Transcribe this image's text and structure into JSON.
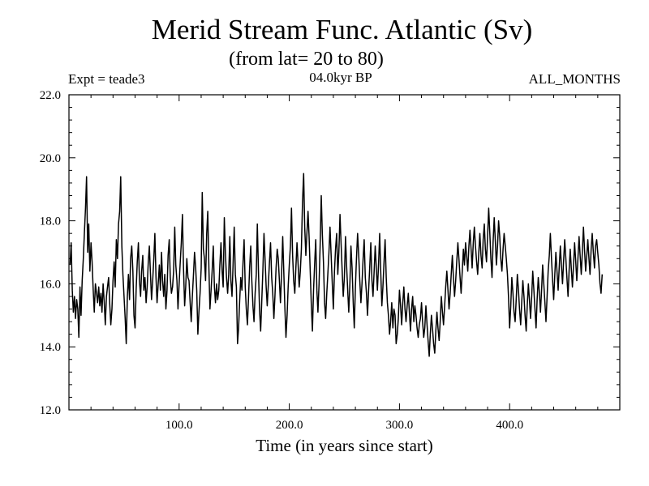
{
  "chart_data": {
    "type": "line",
    "title": "Merid Stream Func. Atlantic (Sv)",
    "subtitle": "(from lat= 20 to 80)",
    "experiment": "Expt = teade3",
    "period": "04.0kyr BP",
    "months": "ALL_MONTHS",
    "xlabel": "Time (in years since start)",
    "ylabel": "",
    "xlim": [
      0,
      500
    ],
    "ylim": [
      12.0,
      22.0
    ],
    "x_ticks": [
      100,
      200,
      300,
      400
    ],
    "x_tick_labels": [
      "100.0",
      "200.0",
      "300.0",
      "400.0"
    ],
    "y_ticks": [
      12,
      14,
      16,
      18,
      20,
      22
    ],
    "y_tick_labels": [
      "12.0",
      "14.0",
      "16.0",
      "18.0",
      "20.0",
      "22.0"
    ],
    "series": [
      {
        "name": "Merid Stream Func. Atlantic",
        "x_start": 1,
        "x_step": 1,
        "values": [
          16.6,
          17.3,
          15.8,
          15.1,
          15.6,
          14.9,
          15.5,
          15.2,
          14.3,
          15.9,
          15.0,
          16.1,
          16.8,
          17.6,
          18.4,
          19.4,
          17.0,
          17.9,
          16.4,
          17.3,
          16.7,
          15.8,
          15.1,
          16.0,
          15.7,
          15.4,
          15.9,
          15.3,
          15.7,
          15.1,
          16.0,
          15.4,
          14.7,
          15.6,
          15.9,
          16.2,
          15.4,
          14.7,
          15.2,
          16.1,
          16.7,
          15.9,
          17.4,
          16.8,
          17.9,
          18.3,
          19.4,
          17.2,
          16.3,
          15.6,
          14.9,
          14.1,
          15.6,
          16.3,
          15.5,
          16.8,
          17.2,
          16.4,
          15.0,
          14.6,
          15.8,
          16.7,
          17.3,
          16.1,
          15.6,
          16.4,
          16.9,
          15.8,
          16.2,
          15.4,
          15.9,
          16.7,
          17.2,
          16.3,
          15.5,
          16.1,
          16.8,
          17.6,
          16.2,
          15.4,
          16.0,
          16.6,
          15.8,
          17.0,
          16.1,
          15.6,
          16.3,
          15.2,
          15.8,
          16.9,
          17.4,
          16.2,
          15.7,
          15.9,
          16.4,
          17.8,
          16.6,
          16.1,
          15.2,
          16.0,
          16.7,
          17.3,
          18.2,
          16.5,
          15.3,
          15.9,
          16.8,
          16.2,
          16.1,
          15.4,
          14.8,
          15.6,
          16.3,
          17.0,
          16.5,
          15.8,
          14.4,
          15.1,
          15.7,
          16.5,
          18.9,
          17.1,
          16.8,
          16.1,
          17.6,
          18.3,
          16.5,
          15.2,
          15.8,
          16.4,
          17.2,
          15.9,
          15.4,
          16.0,
          15.5,
          15.8,
          16.6,
          17.3,
          16.4,
          15.9,
          18.1,
          17.0,
          16.2,
          15.7,
          16.3,
          17.5,
          16.1,
          15.6,
          16.6,
          17.8,
          16.3,
          15.9,
          14.1,
          14.6,
          15.5,
          16.2,
          15.8,
          16.7,
          17.4,
          15.9,
          15.2,
          14.7,
          15.6,
          16.5,
          17.2,
          16.1,
          15.3,
          14.8,
          15.7,
          16.3,
          17.9,
          16.4,
          15.2,
          14.5,
          15.4,
          16.4,
          17.6,
          16.8,
          15.9,
          15.3,
          16.0,
          16.7,
          17.3,
          16.2,
          15.7,
          14.9,
          15.6,
          16.5,
          17.1,
          16.8,
          16.1,
          15.4,
          16.3,
          17.5,
          16.4,
          15.2,
          14.3,
          15.0,
          15.9,
          16.6,
          17.2,
          18.4,
          16.9,
          16.1,
          15.7,
          16.5,
          17.3,
          16.6,
          15.9,
          16.4,
          17.1,
          18.6,
          19.5,
          17.8,
          16.9,
          17.6,
          18.3,
          17.5,
          16.4,
          15.3,
          14.5,
          15.8,
          16.6,
          17.4,
          15.8,
          15.1,
          16.0,
          17.2,
          18.8,
          17.6,
          16.7,
          15.4,
          14.9,
          15.7,
          16.3,
          17.0,
          17.8,
          16.9,
          16.0,
          15.2,
          16.4,
          17.1,
          17.6,
          16.3,
          17.0,
          18.2,
          17.3,
          16.4,
          15.6,
          16.2,
          17.5,
          16.6,
          15.8,
          15.1,
          16.0,
          17.2,
          16.5,
          15.4,
          14.6,
          15.9,
          16.8,
          17.6,
          16.9,
          16.1,
          15.4,
          16.0,
          16.8,
          17.4,
          16.2,
          15.7,
          15.0,
          15.8,
          16.5,
          17.3,
          16.1,
          15.6,
          16.4,
          17.2,
          16.5,
          15.8,
          16.6,
          17.6,
          16.4,
          15.3,
          15.9,
          16.7,
          17.4,
          16.2,
          15.4,
          15.0,
          14.4,
          14.8,
          15.4,
          14.6,
          15.2,
          15.0,
          14.1,
          14.4,
          14.9,
          15.8,
          15.3,
          14.7,
          15.4,
          15.9,
          15.2,
          14.8,
          15.3,
          15.7,
          15.1,
          14.5,
          15.2,
          15.6,
          14.8,
          15.3,
          15.0,
          14.6,
          14.3,
          14.7,
          14.9,
          15.4,
          14.8,
          14.3,
          14.6,
          15.3,
          14.7,
          14.2,
          13.7,
          14.4,
          15.0,
          14.6,
          14.1,
          13.8,
          14.5,
          15.1,
          14.6,
          14.2,
          14.8,
          15.6,
          15.1,
          14.7,
          15.3,
          15.9,
          16.4,
          15.8,
          15.2,
          15.7,
          16.3,
          16.9,
          16.2,
          15.6,
          16.1,
          16.7,
          17.3,
          16.8,
          16.2,
          15.7,
          16.4,
          17.1,
          16.6,
          17.3,
          16.9,
          16.4,
          17.2,
          17.7,
          17.1,
          16.5,
          17.3,
          17.8,
          17.2,
          16.7,
          16.3,
          17.0,
          17.6,
          16.9,
          16.5,
          17.4,
          17.9,
          17.1,
          16.7,
          17.5,
          18.4,
          17.6,
          16.8,
          16.2,
          17.3,
          18.1,
          17.4,
          16.6,
          17.2,
          18.0,
          17.5,
          16.8,
          16.4,
          17.1,
          17.6,
          17.2,
          16.8,
          16.3,
          15.6,
          14.6,
          15.3,
          16.2,
          15.7,
          15.1,
          14.8,
          15.5,
          16.3,
          15.8,
          15.2,
          14.7,
          15.4,
          16.1,
          15.6,
          15.0,
          14.5,
          15.3,
          16.0,
          15.5,
          14.9,
          15.6,
          16.4,
          15.8,
          15.2,
          14.6,
          15.5,
          16.2,
          15.7,
          15.1,
          15.8,
          16.6,
          16.0,
          15.4,
          14.8,
          15.6,
          16.4,
          16.9,
          17.6,
          16.8,
          16.1,
          15.5,
          16.3,
          17.0,
          16.4,
          15.8,
          16.5,
          17.2,
          16.6,
          16.0,
          16.7,
          17.4,
          16.8,
          16.2,
          15.6,
          16.4,
          17.1,
          16.5,
          15.9,
          16.6,
          17.3,
          16.7,
          16.1,
          16.8,
          17.5,
          16.9,
          16.3,
          17.0,
          17.8,
          17.1,
          16.4,
          16.9,
          17.4,
          16.8,
          16.3,
          17.1,
          17.6,
          17.0,
          16.5,
          17.2,
          17.4,
          17.0,
          16.6,
          16.0,
          15.7,
          16.3
        ]
      }
    ]
  }
}
